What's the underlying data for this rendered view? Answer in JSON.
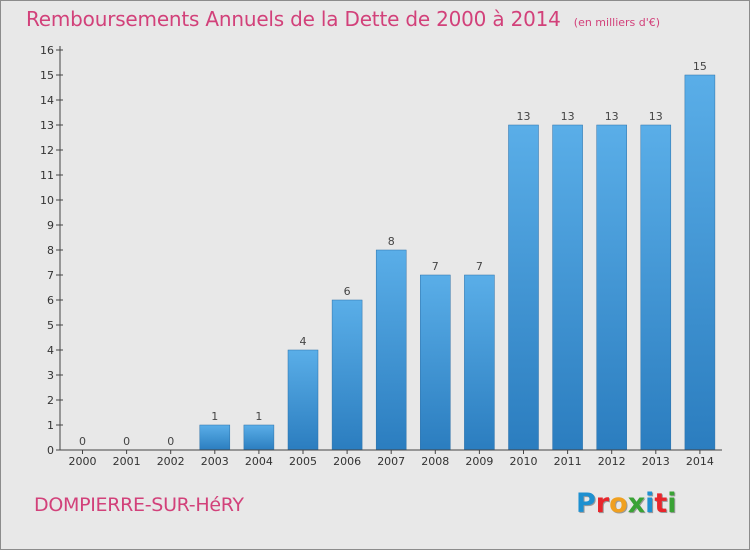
{
  "title": "Remboursements Annuels de la Dette de 2000 à 2014",
  "subtitle": "(en milliers d'€)",
  "commune": "DOMPIERRE-SUR-HéRY",
  "logo": {
    "text": "Proxiti",
    "colors": [
      "#1e90d0",
      "#e8262c",
      "#f0a020",
      "#3aa335",
      "#1e90d0",
      "#e8262c",
      "#3aa335"
    ]
  },
  "colors": {
    "accent": "#d2417a",
    "bar_light": "#5aaee8",
    "bar_dark": "#2b7dbf",
    "background": "#e8e8e8"
  },
  "chart_data": {
    "type": "bar",
    "categories": [
      "2000",
      "2001",
      "2002",
      "2003",
      "2004",
      "2005",
      "2006",
      "2007",
      "2008",
      "2009",
      "2010",
      "2011",
      "2012",
      "2013",
      "2014"
    ],
    "values": [
      0,
      0,
      0,
      1,
      1,
      4,
      6,
      8,
      7,
      7,
      13,
      13,
      13,
      13,
      15
    ],
    "data_labels": [
      "0",
      "0",
      "0",
      "1",
      "1",
      "4",
      "6",
      "8",
      "7",
      "7",
      "13",
      "13",
      "13",
      "13",
      "15"
    ],
    "yticks": [
      "0",
      "1",
      "2",
      "3",
      "4",
      "5",
      "6",
      "7",
      "8",
      "9",
      "10",
      "11",
      "12",
      "13",
      "14",
      "15",
      "16"
    ],
    "ylim": [
      0,
      16
    ],
    "xlabel": "",
    "ylabel": "",
    "grid": false
  }
}
